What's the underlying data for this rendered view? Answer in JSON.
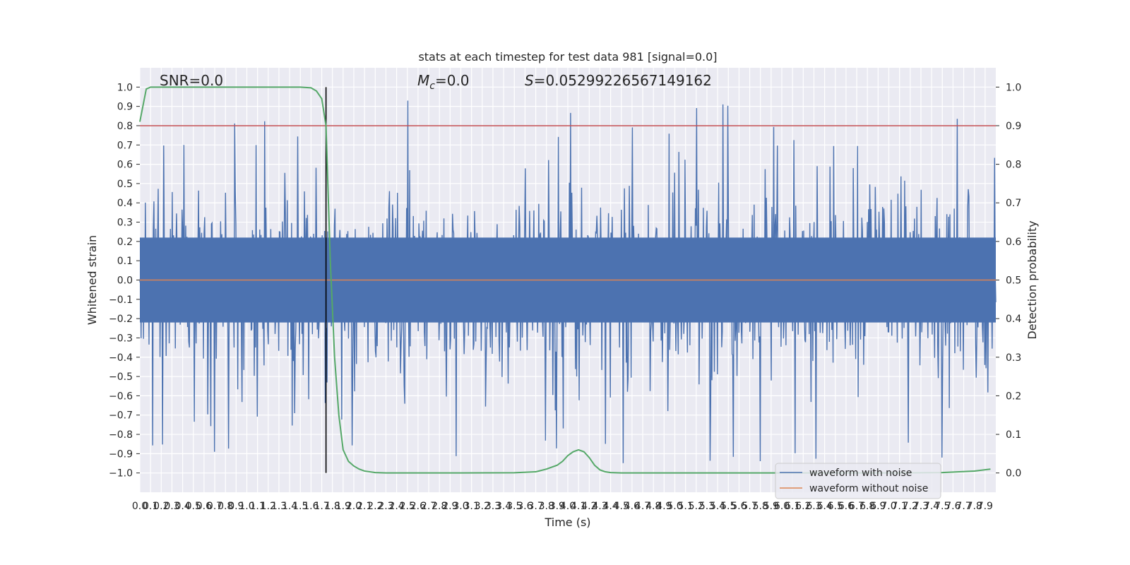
{
  "chart_data": {
    "type": "line",
    "title": "stats at each timestep for test data 981 [signal=0.0]",
    "xlabel": "Time (s)",
    "ylabel": "Whitened strain",
    "y2label": "Detection probability",
    "xlim": [
      0.0,
      8.0
    ],
    "ylim": [
      -1.1,
      1.1
    ],
    "y2lim": [
      -0.05,
      1.05
    ],
    "x_ticks": [
      "0.0",
      "0.1",
      "0.2",
      "0.3",
      "0.4",
      "0.5",
      "0.6",
      "0.7",
      "0.8",
      "0.9",
      "1.0",
      "1.1",
      "1.2",
      "1.3",
      "1.4",
      "1.5",
      "1.6",
      "1.7",
      "1.8",
      "1.9",
      "2.0",
      "2.1",
      "2.2",
      "2.3",
      "2.4",
      "2.5",
      "2.6",
      "2.7",
      "2.8",
      "2.9",
      "3.0",
      "3.1",
      "3.2",
      "3.3",
      "3.4",
      "3.5",
      "3.6",
      "3.7",
      "3.8",
      "3.9",
      "4.0",
      "4.1",
      "4.2",
      "4.3",
      "4.4",
      "4.5",
      "4.6",
      "4.7",
      "4.8",
      "4.9",
      "5.0",
      "5.1",
      "5.2",
      "5.3",
      "5.4",
      "5.5",
      "5.6",
      "5.7",
      "5.8",
      "5.9",
      "6.0",
      "6.1",
      "6.2",
      "6.3",
      "6.4",
      "6.5",
      "6.6",
      "6.7",
      "6.8",
      "6.9",
      "7.0",
      "7.1",
      "7.2",
      "7.3",
      "7.4",
      "7.5",
      "7.6",
      "7.7",
      "7.8",
      "7.9"
    ],
    "y_ticks": [
      "1.0",
      "0.9",
      "0.8",
      "0.7",
      "0.6",
      "0.5",
      "0.4",
      "0.3",
      "0.2",
      "0.1",
      "0.0",
      "−0.1",
      "−0.2",
      "−0.3",
      "−0.4",
      "−0.5",
      "−0.6",
      "−0.7",
      "−0.8",
      "−0.9",
      "−1.0"
    ],
    "y2_ticks": [
      "1.0",
      "0.9",
      "0.8",
      "0.7",
      "0.6",
      "0.5",
      "0.4",
      "0.3",
      "0.2",
      "0.1",
      "0.0"
    ],
    "grid": true,
    "legend_position": "bottom-right",
    "annotations": {
      "snr": "SNR=0.0",
      "mc": "M_c=0.0",
      "s": "S=0.05299226567149162"
    },
    "threshold": 0.9,
    "vline_x": 1.74,
    "series": [
      {
        "name": "waveform with noise",
        "color": "#4c72b0",
        "description_values": "dense noisy strain, roughly within ±0.6, peaks to ±1.0"
      },
      {
        "name": "waveform without noise",
        "color": "#dd8452",
        "values_constant": 0.0
      },
      {
        "name": "detection probability",
        "color": "#55a868",
        "x": [
          0.0,
          0.06,
          0.1,
          0.2,
          0.5,
          1.0,
          1.5,
          1.6,
          1.65,
          1.7,
          1.74,
          1.78,
          1.82,
          1.86,
          1.9,
          1.95,
          2.0,
          2.05,
          2.1,
          2.2,
          2.3,
          2.5,
          3.0,
          3.5,
          3.7,
          3.8,
          3.9,
          3.95,
          4.0,
          4.05,
          4.1,
          4.15,
          4.2,
          4.25,
          4.3,
          4.35,
          4.4,
          4.5,
          5.0,
          6.0,
          7.0,
          7.5,
          7.8,
          7.95
        ],
        "y": [
          0.91,
          0.995,
          1.0,
          1.0,
          1.0,
          1.0,
          1.0,
          0.998,
          0.99,
          0.97,
          0.9,
          0.55,
          0.3,
          0.15,
          0.06,
          0.03,
          0.018,
          0.01,
          0.005,
          0.001,
          0.0,
          0.0,
          0.0,
          0.0005,
          0.003,
          0.01,
          0.02,
          0.03,
          0.045,
          0.055,
          0.06,
          0.055,
          0.04,
          0.02,
          0.008,
          0.003,
          0.001,
          0.0,
          0.0,
          0.0,
          0.0,
          0.001,
          0.005,
          0.01
        ]
      }
    ]
  }
}
